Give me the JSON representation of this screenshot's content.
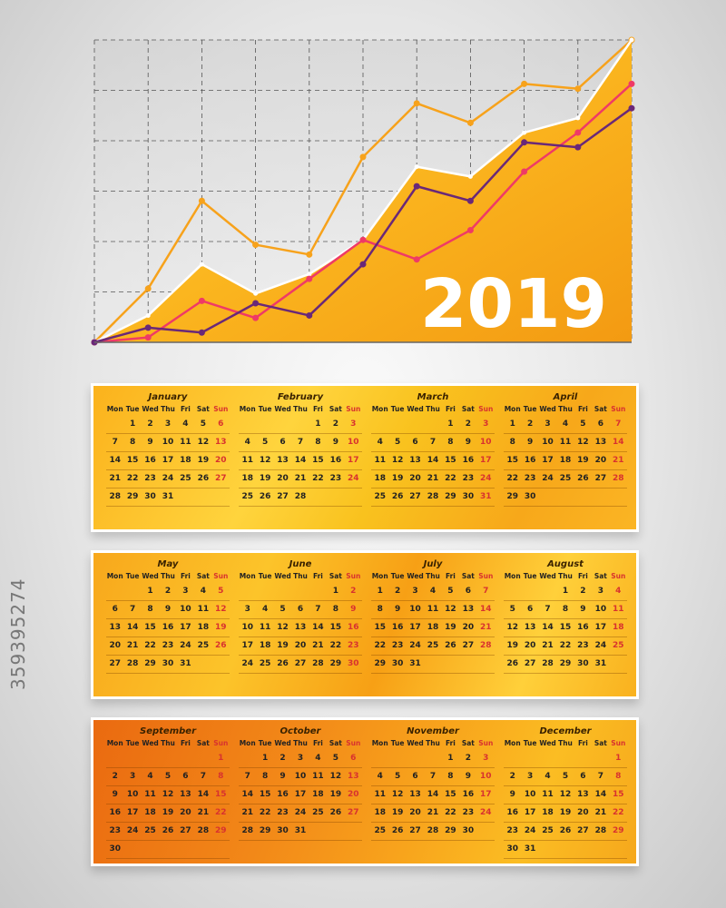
{
  "year_label": "2019",
  "side_text": "359395274",
  "colors": {
    "orange": "#f7a21b",
    "white": "#ffffff",
    "pink": "#ef3a66",
    "purple": "#6a2878",
    "panel_yellow": "#f9c51e",
    "panel_orange": "#f08a12"
  },
  "chart_data": {
    "type": "line",
    "x": [
      0,
      1,
      2,
      3,
      4,
      5,
      6,
      7,
      8,
      9,
      10
    ],
    "series": [
      {
        "values": [
          0.0,
          1.1,
          2.9,
          2.0,
          1.8,
          3.8,
          4.9,
          4.5,
          5.3,
          5.2,
          6.2
        ]
      },
      {
        "values": [
          0.0,
          0.55,
          1.6,
          1.0,
          1.4,
          2.1,
          3.6,
          3.4,
          4.3,
          4.6,
          6.2
        ]
      },
      {
        "values": [
          0.0,
          0.1,
          0.85,
          0.5,
          1.3,
          2.1,
          1.7,
          2.3,
          3.5,
          4.3,
          5.3
        ]
      },
      {
        "values": [
          0.0,
          0.3,
          0.2,
          0.8,
          0.55,
          1.6,
          3.2,
          2.9,
          4.1,
          4.0,
          4.8
        ]
      }
    ],
    "ylim": [
      0,
      6.2
    ],
    "grid": true
  },
  "weekdays": [
    "Mon",
    "Tue",
    "Wed",
    "Thu",
    "Fri",
    "Sat",
    "Sun"
  ],
  "months": [
    {
      "name": "January",
      "offset": 1,
      "days": 31
    },
    {
      "name": "February",
      "offset": 4,
      "days": 28
    },
    {
      "name": "March",
      "offset": 4,
      "days": 31
    },
    {
      "name": "April",
      "offset": 0,
      "days": 30
    },
    {
      "name": "May",
      "offset": 2,
      "days": 31
    },
    {
      "name": "June",
      "offset": 5,
      "days": 30
    },
    {
      "name": "July",
      "offset": 0,
      "days": 31
    },
    {
      "name": "August",
      "offset": 3,
      "days": 31
    },
    {
      "name": "September",
      "offset": 6,
      "days": 30
    },
    {
      "name": "October",
      "offset": 1,
      "days": 31
    },
    {
      "name": "November",
      "offset": 4,
      "days": 30
    },
    {
      "name": "December",
      "offset": 6,
      "days": 31
    }
  ]
}
